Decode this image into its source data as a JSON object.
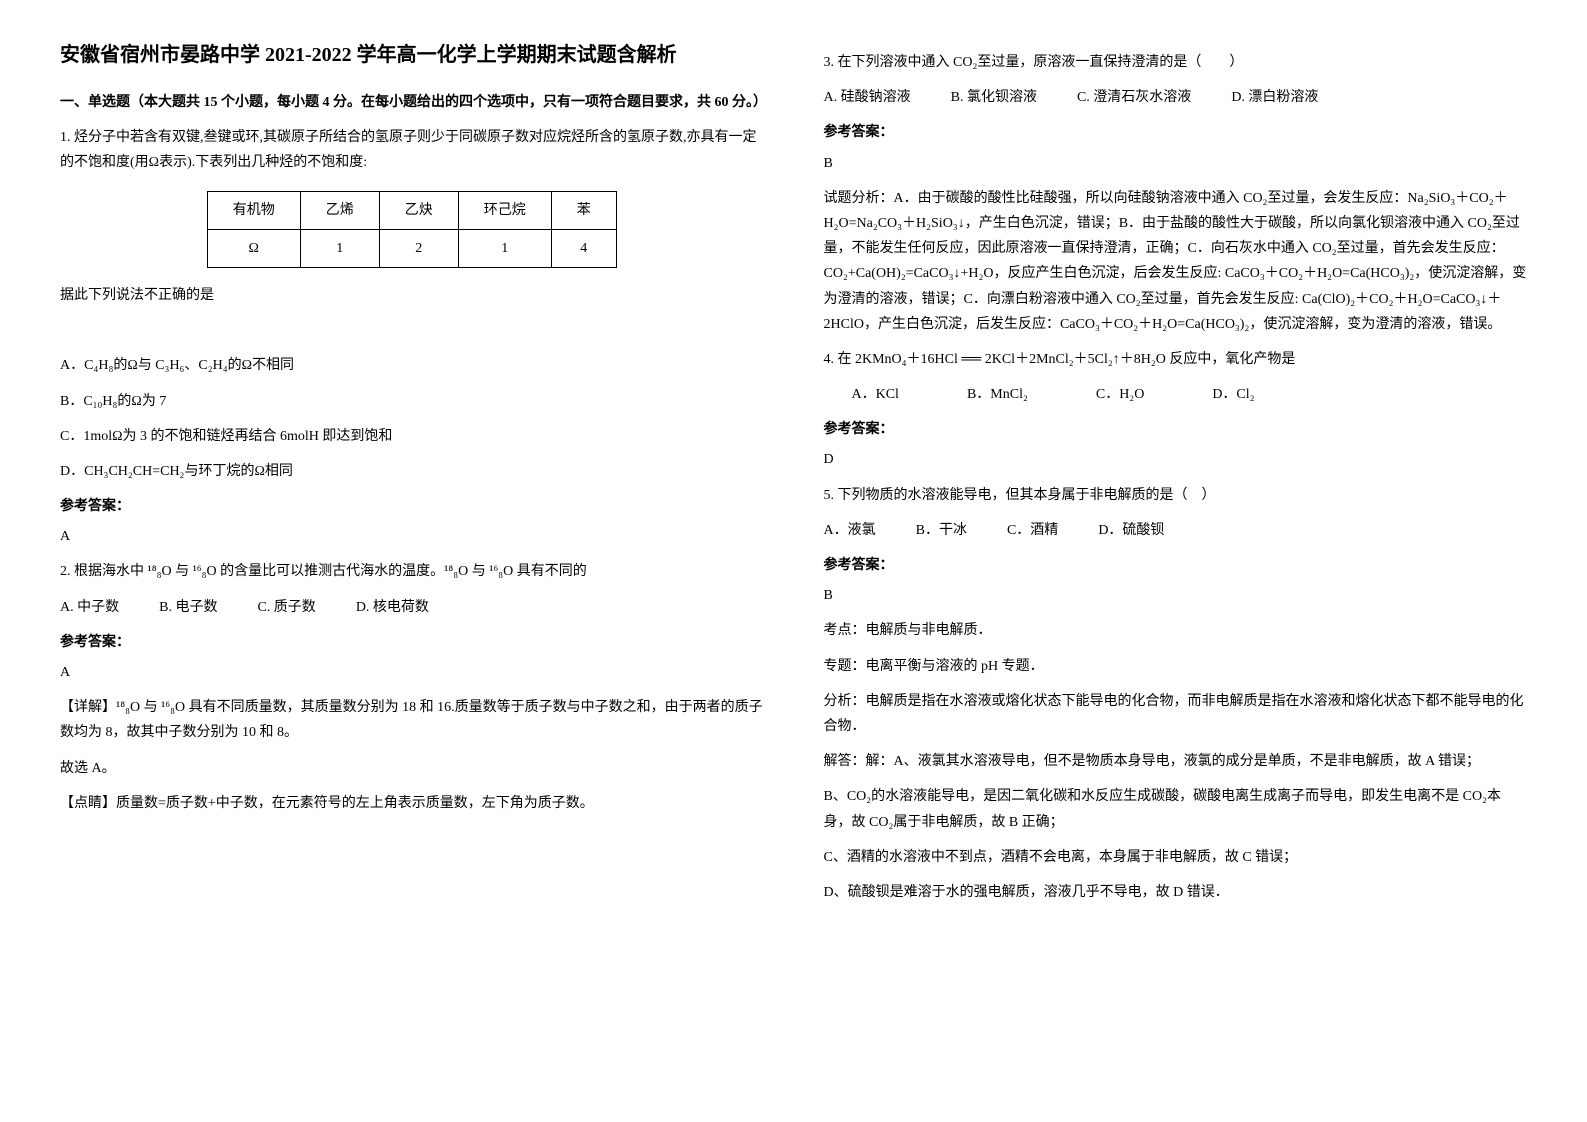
{
  "title": "安徽省宿州市晏路中学 2021-2022 学年高一化学上学期期末试题含解析",
  "section1_header": "一、单选题（本大题共 15 个小题，每小题 4 分。在每小题给出的四个选项中，只有一项符合题目要求，共 60 分。）",
  "q1": {
    "text1": "1. 烃分子中若含有双键,叁键或环,其碳原子所结合的氢原子则少于同碳原子数对应烷烃所含的氢原子数,亦具有一定的不饱和度(用Ω表示).下表列出几种烃的不饱和度:",
    "table_headers": [
      "有机物",
      "乙烯",
      "乙炔",
      "环己烷",
      "苯"
    ],
    "table_row": [
      "Ω",
      "1",
      "2",
      "1",
      "4"
    ],
    "text2": "据此下列说法不正确的是",
    "optA": "A．C₄H₈的Ω与 C₃H₆、C₂H₄的Ω不相同",
    "optB": "B．C₁₀H₈的Ω为 7",
    "optC": "C．1molΩ为 3 的不饱和链烃再结合 6molH 即达到饱和",
    "optD": "D．CH₃CH₂CH=CH₂与环丁烷的Ω相同",
    "answer_label": "参考答案：",
    "answer": "A"
  },
  "q2": {
    "text": "2. 根据海水中 ¹⁸₈O 与 ¹⁶₈O 的含量比可以推测古代海水的温度。¹⁸₈O 与 ¹⁶₈O 具有不同的",
    "optA": "A. 中子数",
    "optB": "B. 电子数",
    "optC": "C. 质子数",
    "optD": "D. 核电荷数",
    "answer_label": "参考答案：",
    "answer": "A",
    "detail": "【详解】¹⁸₈O 与 ¹⁶₈O 具有不同质量数，其质量数分别为 18 和 16.质量数等于质子数与中子数之和，由于两者的质子数均为 8，故其中子数分别为 10 和 8。",
    "detail2": "故选 A。",
    "note": "【点睛】质量数=质子数+中子数，在元素符号的左上角表示质量数，左下角为质子数。"
  },
  "q3": {
    "text": "3. 在下列溶液中通入 CO₂至过量，原溶液一直保持澄清的是（　　）",
    "optA": "A. 硅酸钠溶液",
    "optB": "B. 氯化钡溶液",
    "optC": "C. 澄清石灰水溶液",
    "optD": "D. 漂白粉溶液",
    "answer_label": "参考答案：",
    "answer": "B",
    "analysis": "试题分析：A．由于碳酸的酸性比硅酸强，所以向硅酸钠溶液中通入 CO₂至过量，会发生反应：Na₂SiO₃＋CO₂＋H₂O=Na₂CO₃＋H₂SiO₃↓，产生白色沉淀，错误；B．由于盐酸的酸性大于碳酸，所以向氯化钡溶液中通入 CO₂至过量，不能发生任何反应，因此原溶液一直保持澄清，正确；C．向石灰水中通入 CO₂至过量，首先会发生反应：CO₂+Ca(OH)₂=CaCO₃↓+H₂O，反应产生白色沉淀，后会发生反应: CaCO₃＋CO₂＋H₂O=Ca(HCO₃)₂，使沉淀溶解，变为澄清的溶液，错误；C．向漂白粉溶液中通入 CO₂至过量，首先会发生反应: Ca(ClO)₂＋CO₂＋H₂O=CaCO₃↓＋2HClO，产生白色沉淀，后发生反应：CaCO₃＋CO₂＋H₂O=Ca(HCO₃)₂，使沉淀溶解，变为澄清的溶液，错误。"
  },
  "q4": {
    "text": "4. 在 2KMnO₄＋16HCl ══ 2KCl＋2MnCl₂＋5Cl₂↑＋8H₂O 反应中，氧化产物是",
    "optA": "A．KCl",
    "optB": "B．MnCl₂",
    "optC": "C．H₂O",
    "optD": "D．Cl₂",
    "answer_label": "参考答案：",
    "answer": "D"
  },
  "q5": {
    "text": "5. 下列物质的水溶液能导电，但其本身属于非电解质的是（　）",
    "optA": "A．液氯",
    "optB": "B．干冰",
    "optC": "C．酒精",
    "optD": "D．硫酸钡",
    "answer_label": "参考答案：",
    "answer": "B",
    "kaodian": "考点：电解质与非电解质．",
    "zhuanti": "专题：电离平衡与溶液的 pH 专题．",
    "fenxi": "分析：电解质是指在水溶液或熔化状态下能导电的化合物，而非电解质是指在水溶液和熔化状态下都不能导电的化合物．",
    "jieda": "解答：解：A、液氯其水溶液导电，但不是物质本身导电，液氯的成分是单质，不是非电解质，故 A 错误；",
    "jiedaB": "B、CO₂的水溶液能导电，是因二氧化碳和水反应生成碳酸，碳酸电离生成离子而导电，即发生电离不是 CO₂本身，故 CO₂属于非电解质，故 B 正确；",
    "jiedaC": "C、酒精的水溶液中不到点，酒精不会电离，本身属于非电解质，故 C 错误；",
    "jiedaD": "D、硫酸钡是难溶于水的强电解质，溶液几乎不导电，故 D 错误．"
  }
}
